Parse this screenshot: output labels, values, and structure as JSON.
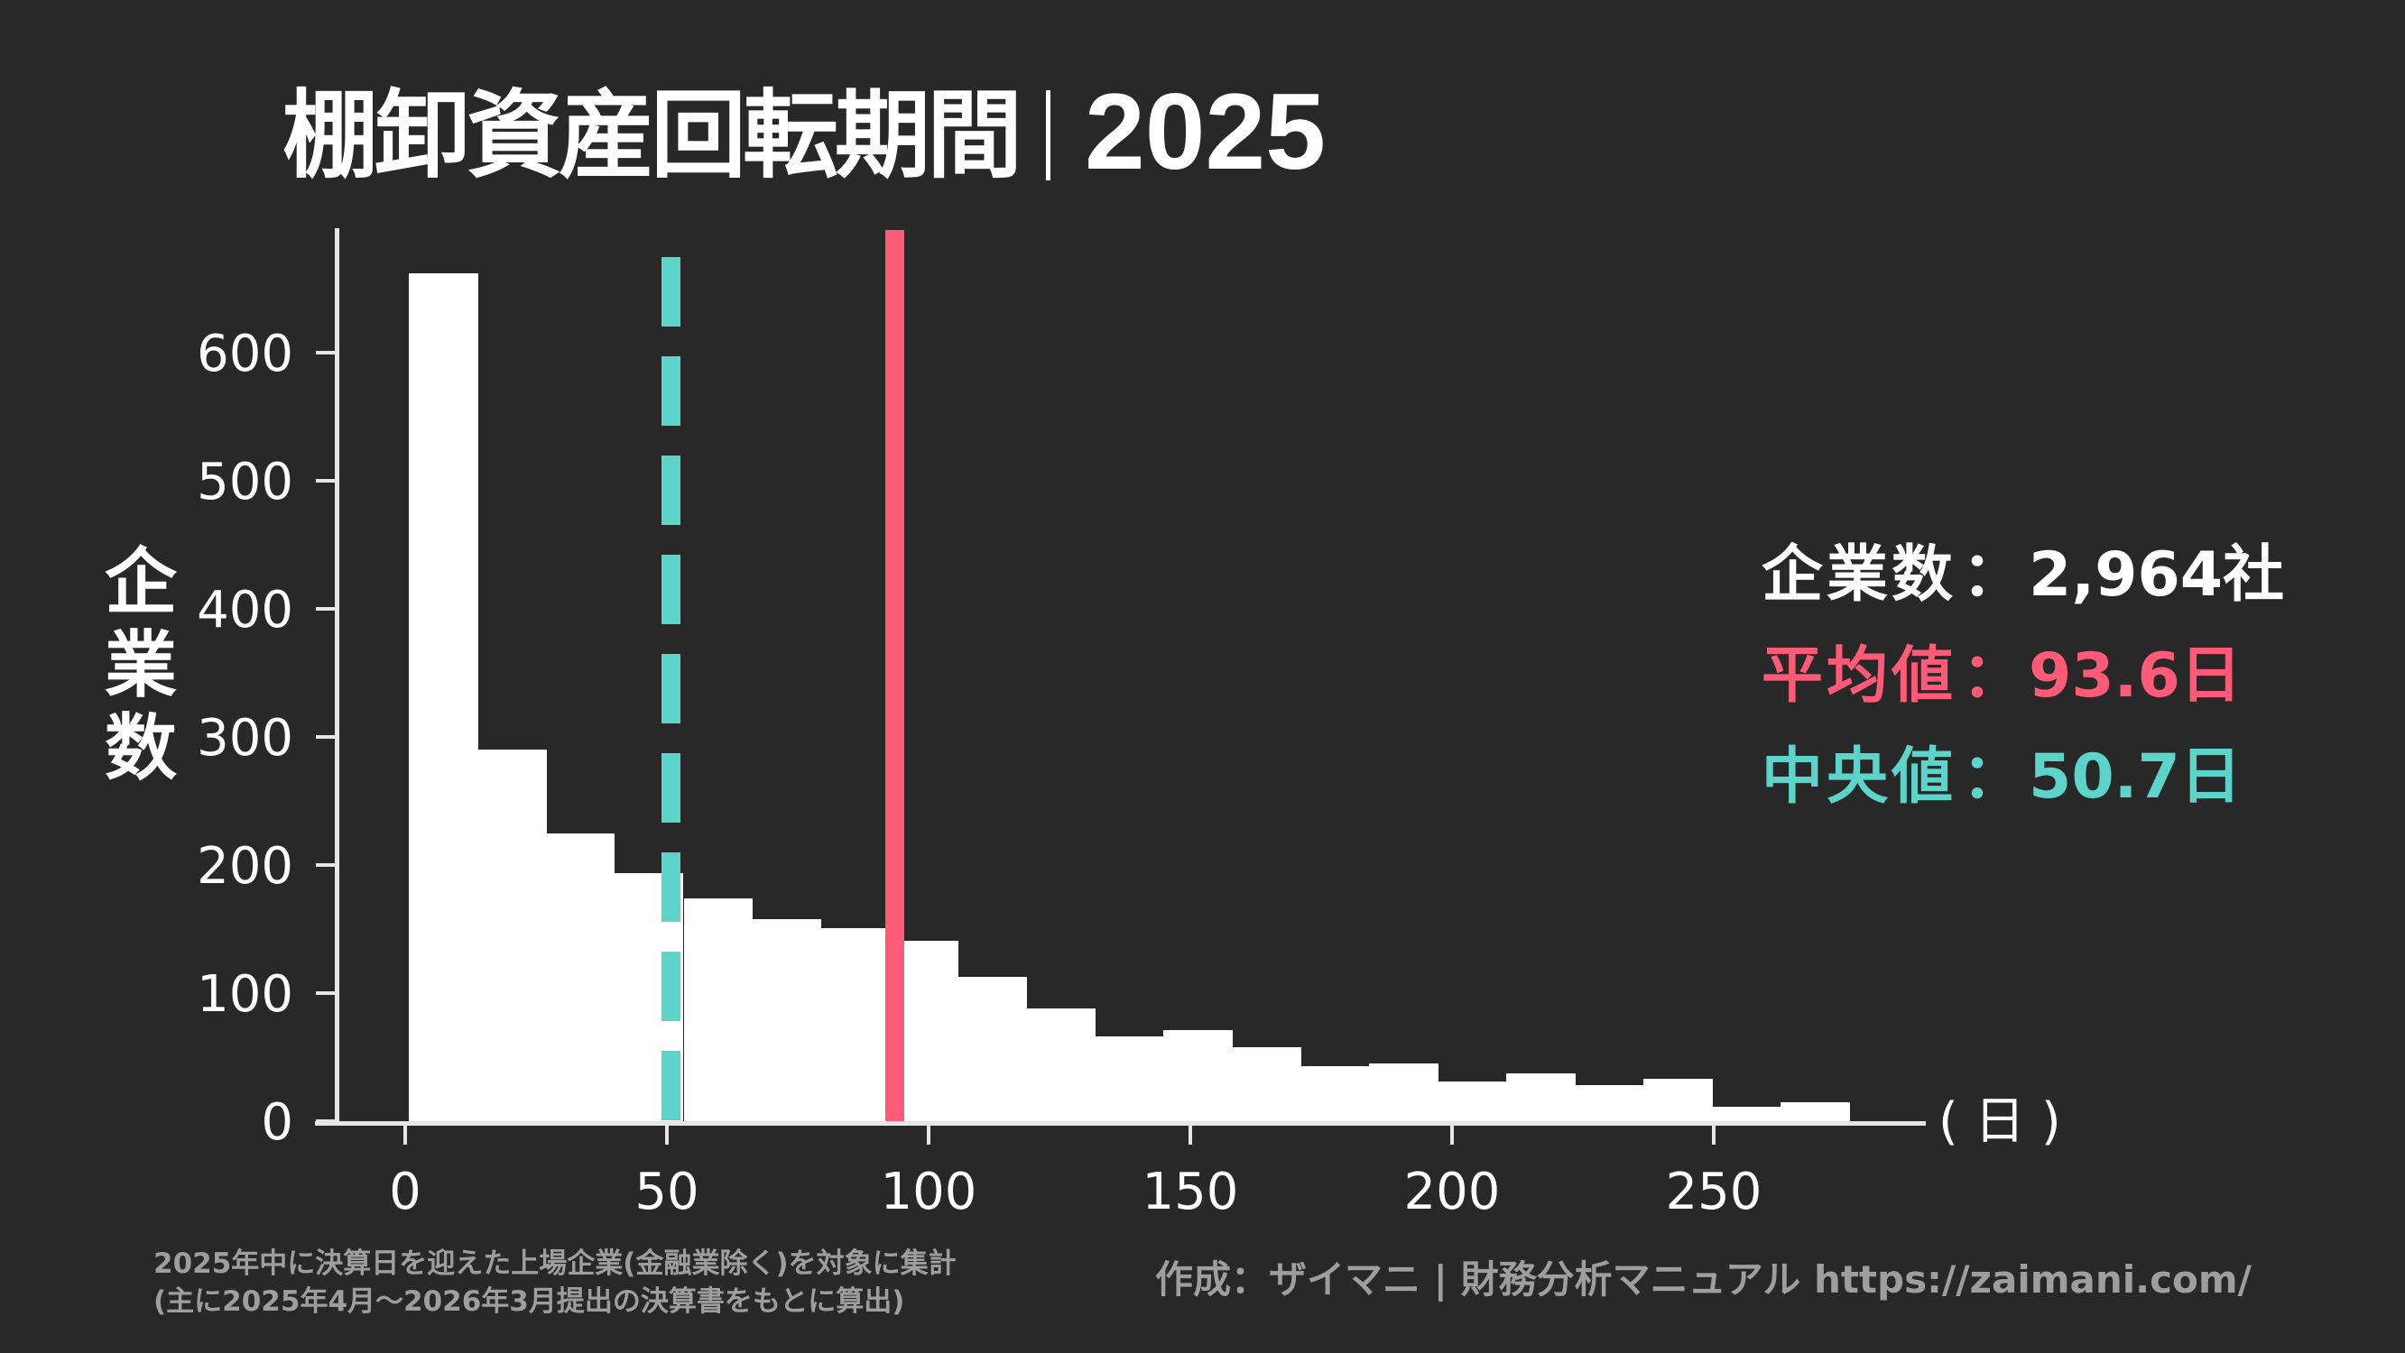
{
  "title": {
    "main": "棚卸資産回転期間",
    "separator": "|",
    "year": "2025"
  },
  "axes": {
    "y_label": [
      "企",
      "業",
      "数"
    ],
    "y_ticks": [
      "0",
      "100",
      "200",
      "300",
      "400",
      "500",
      "600"
    ],
    "x_ticks": [
      "0",
      "50",
      "100",
      "150",
      "200",
      "250"
    ],
    "x_unit": "(日)"
  },
  "stats": {
    "count": {
      "label": "企業数",
      "colon": "：",
      "value": "2,964社"
    },
    "mean": {
      "label": "平均値",
      "colon": "：",
      "value": "93.6日"
    },
    "median": {
      "label": "中央値",
      "colon": "：",
      "value": "50.7日"
    }
  },
  "colors": {
    "background": "#282828",
    "bars": "#FFFFFF",
    "mean": "#FF5B78",
    "median": "#5DD4C9",
    "footer_text": "#9E9E9E"
  },
  "footer": {
    "note_line1": "2025年中に決算日を迎えた上場企業(金融業除く)を対象に集計",
    "note_line2": "(主に2025年4月〜2026年3月提出の決算書をもとに算出)",
    "credit": "作成：ザイマニ | 財務分析マニュアル https://zaimani.com/"
  },
  "chart_data": {
    "type": "bar",
    "subtype": "histogram",
    "title": "棚卸資産回転期間 | 2025",
    "xlabel": "(日)",
    "ylabel": "企業数",
    "xlim": [
      -27,
      285
    ],
    "ylim": [
      0,
      700
    ],
    "x_ticks": [
      0,
      50,
      100,
      150,
      200,
      250
    ],
    "y_ticks": [
      0,
      100,
      200,
      300,
      400,
      500,
      600
    ],
    "grid": false,
    "bin_width_days": 13.1,
    "bin_start_days": [
      0.7,
      13.8,
      26.9,
      40.0,
      53.2,
      66.3,
      79.4,
      92.5,
      105.6,
      118.7,
      131.8,
      144.9,
      158.0,
      171.1,
      184.2,
      197.3,
      210.4,
      223.5,
      236.6,
      249.7,
      262.8
    ],
    "categories": [
      "0.7-13.8",
      "13.8-26.9",
      "26.9-40.0",
      "40.0-53.2",
      "53.2-66.3",
      "66.3-79.4",
      "79.4-92.5",
      "92.5-105.6",
      "105.6-118.7",
      "118.7-131.8",
      "131.8-144.9",
      "144.9-158.0",
      "158.0-171.1",
      "171.1-184.2",
      "184.2-197.3",
      "197.3-210.4",
      "210.4-223.5",
      "223.5-236.6",
      "236.6-249.7",
      "249.7-262.8",
      "262.8-275.9"
    ],
    "values": [
      662,
      290,
      225,
      194,
      174,
      158,
      151,
      141,
      113,
      88,
      66,
      71,
      58,
      43,
      45,
      31,
      37,
      28,
      33,
      11,
      15
    ],
    "reference_lines": [
      {
        "name": "平均値",
        "x": 93.6,
        "style": "solid",
        "color": "#FF5B78"
      },
      {
        "name": "中央値",
        "x": 50.7,
        "style": "dashed",
        "color": "#5DD4C9"
      }
    ],
    "annotations": [
      "企業数：2,964社",
      "平均値：93.6日",
      "中央値：50.7日"
    ]
  }
}
